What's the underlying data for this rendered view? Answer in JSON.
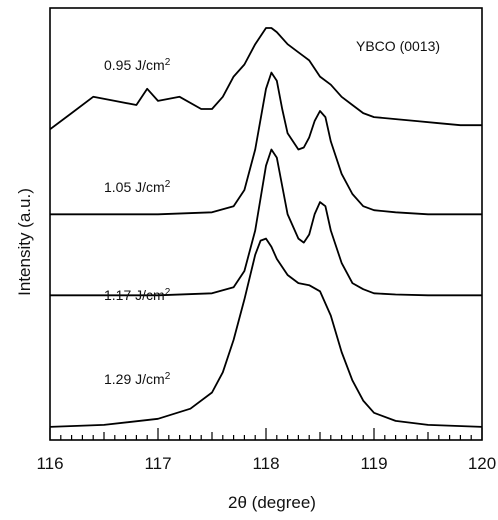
{
  "chart_data": {
    "type": "line",
    "title": "",
    "xlabel": "2θ (degree)",
    "ylabel": "Intensity (a.u.)",
    "xlim": [
      116,
      120
    ],
    "xticks": [
      "116",
      "117",
      "118",
      "119",
      "120"
    ],
    "ylim": [
      0,
      10
    ],
    "grid": false,
    "annotation": "YBCO (0013)",
    "series": [
      {
        "name": "0.95 J/cm2",
        "x": [
          116.0,
          116.2,
          116.4,
          116.6,
          116.8,
          116.9,
          117.0,
          117.2,
          117.4,
          117.5,
          117.6,
          117.7,
          117.8,
          117.9,
          118.0,
          118.05,
          118.1,
          118.2,
          118.3,
          118.35,
          118.4,
          118.5,
          118.6,
          118.7,
          118.8,
          118.9,
          119.0,
          119.2,
          119.4,
          119.6,
          119.8,
          120.0
        ],
        "y": [
          7.5,
          7.9,
          8.3,
          8.2,
          8.1,
          8.5,
          8.2,
          8.3,
          8.0,
          8.0,
          8.3,
          8.8,
          9.1,
          9.6,
          10.0,
          10.0,
          9.9,
          9.6,
          9.4,
          9.3,
          9.2,
          8.8,
          8.6,
          8.3,
          8.1,
          7.9,
          7.8,
          7.75,
          7.7,
          7.65,
          7.6,
          7.6
        ]
      },
      {
        "name": "1.05 J/cm2",
        "x": [
          116.0,
          117.0,
          117.5,
          117.7,
          117.8,
          117.9,
          118.0,
          118.05,
          118.1,
          118.15,
          118.2,
          118.3,
          118.35,
          118.4,
          118.45,
          118.5,
          118.55,
          118.6,
          118.7,
          118.8,
          118.9,
          119.0,
          119.2,
          119.5,
          120.0
        ],
        "y": [
          5.4,
          5.4,
          5.45,
          5.6,
          6.0,
          7.0,
          8.5,
          8.9,
          8.7,
          8.0,
          7.4,
          7.0,
          7.05,
          7.3,
          7.7,
          7.95,
          7.8,
          7.2,
          6.4,
          5.9,
          5.6,
          5.5,
          5.45,
          5.4,
          5.4
        ]
      },
      {
        "name": "1.17 J/cm2",
        "x": [
          116.0,
          117.0,
          117.5,
          117.7,
          117.8,
          117.9,
          118.0,
          118.05,
          118.1,
          118.15,
          118.2,
          118.3,
          118.35,
          118.4,
          118.45,
          118.5,
          118.55,
          118.6,
          118.7,
          118.8,
          118.9,
          119.0,
          119.2,
          119.5,
          120.0
        ],
        "y": [
          3.4,
          3.4,
          3.45,
          3.6,
          4.0,
          5.0,
          6.6,
          7.0,
          6.8,
          6.1,
          5.4,
          4.8,
          4.7,
          4.9,
          5.4,
          5.7,
          5.6,
          5.0,
          4.2,
          3.7,
          3.55,
          3.45,
          3.42,
          3.4,
          3.4
        ]
      },
      {
        "name": "1.29 J/cm2",
        "x": [
          116.0,
          116.5,
          117.0,
          117.3,
          117.5,
          117.6,
          117.7,
          117.8,
          117.9,
          117.95,
          118.0,
          118.05,
          118.1,
          118.2,
          118.3,
          118.4,
          118.5,
          118.6,
          118.7,
          118.8,
          118.9,
          119.0,
          119.2,
          119.5,
          120.0
        ],
        "y": [
          0.15,
          0.2,
          0.35,
          0.6,
          1.0,
          1.5,
          2.3,
          3.3,
          4.4,
          4.75,
          4.8,
          4.6,
          4.3,
          3.9,
          3.7,
          3.65,
          3.5,
          2.9,
          2.0,
          1.3,
          0.8,
          0.5,
          0.3,
          0.2,
          0.15
        ]
      }
    ],
    "series_labels": [
      {
        "name": "0.95 J/cm",
        "sup": "2"
      },
      {
        "name": "1.05 J/cm",
        "sup": "2"
      },
      {
        "name": "1.17 J/cm",
        "sup": "2"
      },
      {
        "name": "1.29 J/cm",
        "sup": "2"
      }
    ]
  }
}
